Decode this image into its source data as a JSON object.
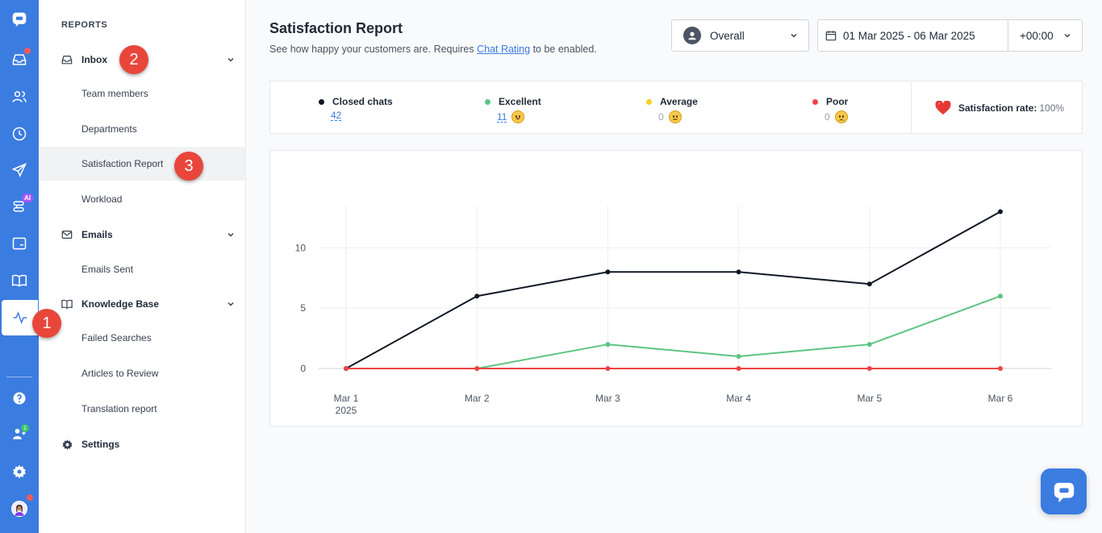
{
  "sidenav": {
    "heading": "REPORTS",
    "inbox": {
      "label": "Inbox",
      "items": [
        "Team members",
        "Departments",
        "Satisfaction Report",
        "Workload"
      ]
    },
    "emails": {
      "label": "Emails",
      "items": [
        "Emails Sent"
      ]
    },
    "kb": {
      "label": "Knowledge Base",
      "items": [
        "Failed Searches",
        "Articles to Review",
        "Translation report"
      ]
    },
    "settings": {
      "label": "Settings"
    }
  },
  "rail": {
    "ai_badge": "AI",
    "team_badge": "1"
  },
  "steps": [
    "1",
    "2",
    "3"
  ],
  "header": {
    "title": "Satisfaction Report",
    "subtitle_pre": "See how happy your customers are. Requires ",
    "subtitle_link": "Chat Rating",
    "subtitle_post": " to be enabled."
  },
  "filters": {
    "agent": "Overall",
    "date_range": "01 Mar 2025 - 06 Mar 2025",
    "timezone": "+00:00"
  },
  "stats": {
    "closed": {
      "label": "Closed chats",
      "value": "42",
      "color": "#111827"
    },
    "excellent": {
      "label": "Excellent",
      "value": "11",
      "color": "#5cc482"
    },
    "average": {
      "label": "Average",
      "value": "0",
      "color": "#f5d020"
    },
    "poor": {
      "label": "Poor",
      "value": "0",
      "color": "#ef4444"
    },
    "satisfaction": {
      "label": "Satisfaction rate:",
      "value": "100%"
    }
  },
  "chart_data": {
    "type": "line",
    "x": [
      "Mar 1",
      "Mar 2",
      "Mar 3",
      "Mar 4",
      "Mar 5",
      "Mar 6"
    ],
    "x_sublabel": "2025",
    "ylim": [
      0,
      13.5
    ],
    "yticks": [
      0,
      5,
      10
    ],
    "grid": true,
    "series": [
      {
        "name": "Closed chats",
        "color": "#111827",
        "values": [
          0,
          6,
          8,
          8,
          7,
          13
        ]
      },
      {
        "name": "Excellent",
        "color": "#5cc482",
        "values": [
          null,
          0,
          2,
          1,
          2,
          6
        ]
      },
      {
        "name": "Poor",
        "color": "#ef4444",
        "values": [
          0,
          0,
          0,
          0,
          0,
          0
        ]
      }
    ]
  }
}
